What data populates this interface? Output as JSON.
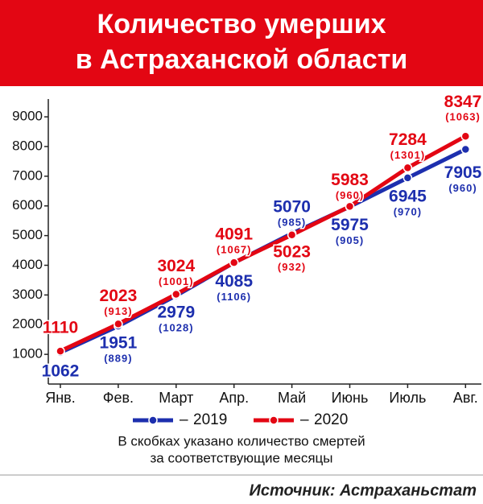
{
  "chart_data": {
    "type": "line",
    "title": [
      "Количество умерших",
      "в Астраханской области"
    ],
    "categories": [
      "Янв.",
      "Фев.",
      "Март",
      "Апр.",
      "Май",
      "Июнь",
      "Июль",
      "Авг."
    ],
    "series": [
      {
        "name": "2019",
        "color": "#1d2fae",
        "values": [
          1062,
          1951,
          2979,
          4085,
          5070,
          5975,
          6945,
          7905
        ],
        "monthly_labels": [
          null,
          "(889)",
          "(1028)",
          "(1106)",
          "(985)",
          "(905)",
          "(970)",
          "(960)"
        ]
      },
      {
        "name": "2020",
        "color": "#e30613",
        "values": [
          1110,
          2023,
          3024,
          4091,
          5023,
          5983,
          7284,
          8347
        ],
        "monthly_labels": [
          null,
          "(913)",
          "(1001)",
          "(1067)",
          "(932)",
          "(960)",
          "(1301)",
          "(1063)"
        ]
      }
    ],
    "ylim": [
      0,
      9600
    ],
    "yticks": [
      1000,
      2000,
      3000,
      4000,
      5000,
      6000,
      7000,
      8000,
      9000
    ],
    "note": [
      "В скобках указано количество смертей",
      "за соответствующие месяцы"
    ],
    "source": "Источник: Астраханьстат"
  }
}
